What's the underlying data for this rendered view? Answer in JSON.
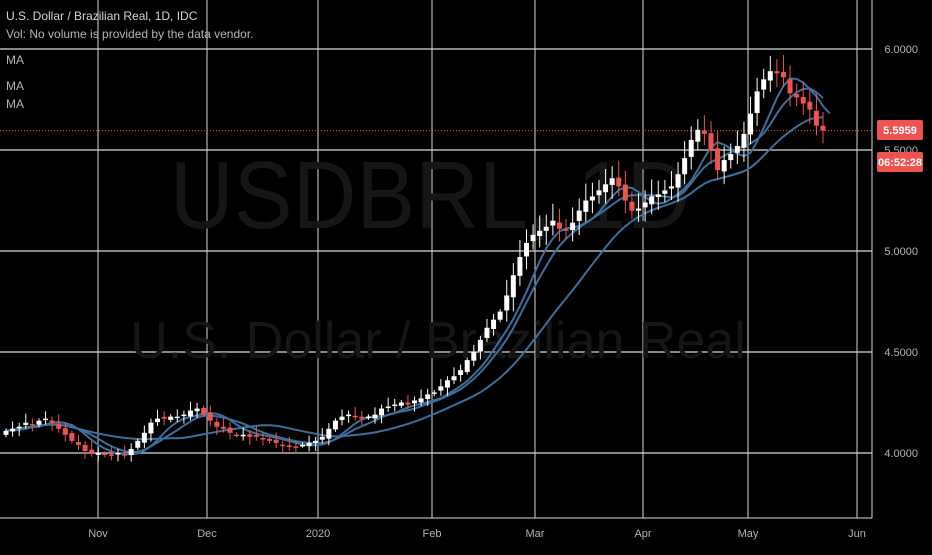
{
  "legend": {
    "title": "U.S. Dollar / Brazilian Real, 1D, IDC",
    "volume_note": "Vol: No volume is provided by the data vendor.",
    "ma_labels": [
      "MA",
      "MA",
      "MA"
    ]
  },
  "watermark": {
    "symbol": "USDBRL, 1D",
    "name": "U.S. Dollar / Brazilian Real"
  },
  "price_axis": {
    "labels": [
      "6.0000",
      "5.5000",
      "5.0000",
      "4.5000",
      "4.0000"
    ],
    "last_price": "5.5959",
    "countdown": "06:52:28"
  },
  "time_axis": {
    "labels": [
      "Nov",
      "Dec",
      "2020",
      "Feb",
      "Mar",
      "Apr",
      "May",
      "Jun"
    ]
  },
  "colors": {
    "background": "#000000",
    "grid": "#d9d9d9",
    "up": "#ffffff",
    "down": "#ef5350",
    "ma": "#3c6f9c",
    "axis_text": "#b2b5be",
    "price_tag": "#ef5350"
  },
  "chart_data": {
    "type": "candlestick",
    "title": "U.S. Dollar / Brazilian Real, 1D, IDC",
    "y_scale": "linear",
    "ylim": [
      3.75,
      6.2
    ],
    "yticks": [
      4.0,
      4.5,
      5.0,
      5.5,
      6.0
    ],
    "x_ticks": [
      "Nov",
      "Dec",
      "2020",
      "Feb",
      "Mar",
      "Apr",
      "May",
      "Jun"
    ],
    "grid": true,
    "last_price": 5.5959,
    "series": [
      {
        "name": "USDBRL",
        "close": [
          4.11,
          4.12,
          4.13,
          4.15,
          4.14,
          4.16,
          4.17,
          4.15,
          4.12,
          4.09,
          4.06,
          4.04,
          4.01,
          4.0,
          4.0,
          3.99,
          3.99,
          4.0,
          3.99,
          4.02,
          4.06,
          4.1,
          4.15,
          4.17,
          4.17,
          4.18,
          4.18,
          4.19,
          4.21,
          4.22,
          4.19,
          4.16,
          4.13,
          4.12,
          4.1,
          4.09,
          4.09,
          4.08,
          4.08,
          4.07,
          4.06,
          4.05,
          4.04,
          4.03,
          4.03,
          4.04,
          4.05,
          4.06,
          4.08,
          4.12,
          4.16,
          4.18,
          4.19,
          4.18,
          4.17,
          4.18,
          4.19,
          4.22,
          4.23,
          4.24,
          4.25,
          4.24,
          4.26,
          4.27,
          4.29,
          4.3,
          4.33,
          4.36,
          4.38,
          4.41,
          4.46,
          4.5,
          4.56,
          4.62,
          4.66,
          4.7,
          4.78,
          4.88,
          4.97,
          5.04,
          5.08,
          5.1,
          5.12,
          5.15,
          5.11,
          5.1,
          5.14,
          5.2,
          5.25,
          5.27,
          5.3,
          5.33,
          5.36,
          5.32,
          5.25,
          5.2,
          5.21,
          5.24,
          5.27,
          5.28,
          5.3,
          5.32,
          5.38,
          5.46,
          5.55,
          5.6,
          5.58,
          5.5,
          5.4,
          5.45,
          5.48,
          5.52,
          5.58,
          5.68,
          5.79,
          5.85,
          5.89,
          5.88,
          5.86,
          5.78,
          5.76,
          5.73,
          5.7,
          5.62,
          5.5959
        ]
      }
    ]
  }
}
